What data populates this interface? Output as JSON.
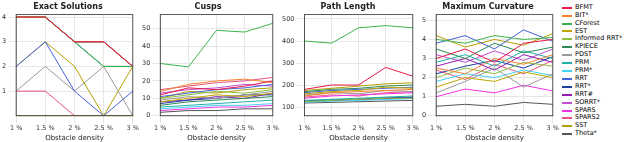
{
  "chart_data": [
    {
      "type": "line",
      "title": "Exact Solutions",
      "xlabel": "Obstacle density",
      "categories": [
        "1 %",
        "1.5 %",
        "2 %",
        "2.5 %",
        "3 %"
      ],
      "ylim": [
        0,
        4.1
      ],
      "yticks": [
        1,
        2,
        3,
        4
      ],
      "grid": true,
      "series": [
        {
          "name": "BFMT",
          "color": "#e6194b",
          "values": [
            4,
            4,
            3,
            3,
            2
          ]
        },
        {
          "name": "BIT*",
          "color": "#f58231",
          "values": [
            4,
            4,
            3,
            3,
            2
          ]
        },
        {
          "name": "CForest",
          "color": "#3cb44b",
          "values": [
            4,
            4,
            3,
            2,
            2
          ]
        },
        {
          "name": "EST",
          "color": "#bfa600",
          "values": [
            0,
            0,
            0,
            0,
            0
          ]
        },
        {
          "name": "Informed RRT*",
          "color": "#8fbf3f",
          "values": [
            4,
            4,
            3,
            3,
            2
          ]
        },
        {
          "name": "KPIECE",
          "color": "#2e8b57",
          "values": [
            0,
            0,
            0,
            0,
            0
          ]
        },
        {
          "name": "PDST",
          "color": "#999999",
          "values": [
            1,
            2,
            1,
            2,
            0
          ]
        },
        {
          "name": "PRM",
          "color": "#20b2aa",
          "values": [
            4,
            4,
            3,
            2,
            2
          ]
        },
        {
          "name": "PRM*",
          "color": "#42d4f4",
          "values": [
            4,
            4,
            3,
            3,
            2
          ]
        },
        {
          "name": "RRT",
          "color": "#4363d8",
          "values": [
            2,
            3,
            1,
            0,
            1
          ]
        },
        {
          "name": "RRT*",
          "color": "#1f3f9f",
          "values": [
            4,
            4,
            3,
            3,
            2
          ]
        },
        {
          "name": "RRT#",
          "color": "#911eb4",
          "values": [
            4,
            4,
            3,
            3,
            2
          ]
        },
        {
          "name": "SORRT*",
          "color": "#c04fd0",
          "values": [
            4,
            4,
            3,
            2,
            2
          ]
        },
        {
          "name": "SPARS",
          "color": "#f032e6",
          "values": [
            0,
            0,
            0,
            0,
            0
          ]
        },
        {
          "name": "SPARS2",
          "color": "#e75480",
          "values": [
            1,
            1,
            0,
            0,
            0
          ]
        },
        {
          "name": "SST",
          "color": "#b5a000",
          "values": [
            2,
            3,
            2,
            0,
            2
          ]
        },
        {
          "name": "Theta*",
          "color": "#555555",
          "values": [
            4,
            4,
            3,
            3,
            2
          ]
        }
      ]
    },
    {
      "type": "line",
      "title": "Cusps",
      "xlabel": "Obstacle density",
      "categories": [
        "1 %",
        "1.5 %",
        "2 %",
        "2.5 %",
        "3 %"
      ],
      "ylim": [
        0,
        58
      ],
      "yticks": [
        0,
        10,
        20,
        30,
        40,
        50
      ],
      "grid": true,
      "series": [
        {
          "name": "BFMT",
          "color": "#e6194b",
          "values": [
            12,
            16,
            15,
            17,
            20
          ]
        },
        {
          "name": "BIT*",
          "color": "#f58231",
          "values": [
            14,
            18,
            20,
            21,
            19
          ]
        },
        {
          "name": "CForest",
          "color": "#3cb44b",
          "values": [
            30,
            28,
            49,
            48,
            53
          ]
        },
        {
          "name": "EST",
          "color": "#bfa600",
          "values": [
            8,
            10,
            12,
            11,
            13
          ]
        },
        {
          "name": "Informed RRT*",
          "color": "#8fbf3f",
          "values": [
            10,
            12,
            14,
            13,
            15
          ]
        },
        {
          "name": "KPIECE",
          "color": "#2e8b57",
          "values": [
            6,
            8,
            9,
            10,
            11
          ]
        },
        {
          "name": "PDST",
          "color": "#999999",
          "values": [
            9,
            11,
            10,
            12,
            14
          ]
        },
        {
          "name": "PRM",
          "color": "#20b2aa",
          "values": [
            5,
            6,
            7,
            8,
            9
          ]
        },
        {
          "name": "PRM*",
          "color": "#42d4f4",
          "values": [
            4,
            5,
            6,
            6,
            7
          ]
        },
        {
          "name": "RRT",
          "color": "#4363d8",
          "values": [
            11,
            13,
            15,
            16,
            18
          ]
        },
        {
          "name": "RRT*",
          "color": "#1f3f9f",
          "values": [
            7,
            9,
            10,
            12,
            12
          ]
        },
        {
          "name": "RRT#",
          "color": "#911eb4",
          "values": [
            8,
            9,
            11,
            10,
            13
          ]
        },
        {
          "name": "SORRT*",
          "color": "#c04fd0",
          "values": [
            13,
            15,
            16,
            18,
            17
          ]
        },
        {
          "name": "SPARS",
          "color": "#f032e6",
          "values": [
            3,
            4,
            5,
            5,
            6
          ]
        },
        {
          "name": "SPARS2",
          "color": "#e75480",
          "values": [
            15,
            17,
            19,
            20,
            22
          ]
        },
        {
          "name": "SST",
          "color": "#b5a000",
          "values": [
            10,
            14,
            13,
            15,
            16
          ]
        },
        {
          "name": "Theta*",
          "color": "#555555",
          "values": [
            2,
            3,
            3,
            4,
            4
          ]
        }
      ]
    },
    {
      "type": "line",
      "title": "Path Length",
      "xlabel": "Obstacle density",
      "categories": [
        "1 %",
        "1.5 %",
        "2 %",
        "2.5 %",
        "3 %"
      ],
      "ylim": [
        60,
        520
      ],
      "yticks": [
        100,
        200,
        300,
        400,
        500
      ],
      "grid": true,
      "series": [
        {
          "name": "BFMT",
          "color": "#e6194b",
          "values": [
            180,
            200,
            200,
            280,
            240
          ]
        },
        {
          "name": "BIT*",
          "color": "#f58231",
          "values": [
            150,
            165,
            170,
            175,
            180
          ]
        },
        {
          "name": "CForest",
          "color": "#3cb44b",
          "values": [
            400,
            390,
            460,
            470,
            460
          ]
        },
        {
          "name": "EST",
          "color": "#bfa600",
          "values": [
            160,
            170,
            175,
            190,
            185
          ]
        },
        {
          "name": "Informed RRT*",
          "color": "#8fbf3f",
          "values": [
            125,
            130,
            135,
            140,
            140
          ]
        },
        {
          "name": "KPIECE",
          "color": "#2e8b57",
          "values": [
            170,
            180,
            185,
            195,
            200
          ]
        },
        {
          "name": "PDST",
          "color": "#999999",
          "values": [
            155,
            165,
            160,
            175,
            170
          ]
        },
        {
          "name": "PRM",
          "color": "#20b2aa",
          "values": [
            130,
            135,
            140,
            145,
            150
          ]
        },
        {
          "name": "PRM*",
          "color": "#42d4f4",
          "values": [
            122,
            126,
            130,
            134,
            138
          ]
        },
        {
          "name": "RRT",
          "color": "#4363d8",
          "values": [
            165,
            175,
            180,
            185,
            190
          ]
        },
        {
          "name": "RRT*",
          "color": "#1f3f9f",
          "values": [
            128,
            132,
            136,
            142,
            145
          ]
        },
        {
          "name": "RRT#",
          "color": "#911eb4",
          "values": [
            126,
            131,
            134,
            139,
            143
          ]
        },
        {
          "name": "SORRT*",
          "color": "#c04fd0",
          "values": [
            124,
            129,
            133,
            137,
            141
          ]
        },
        {
          "name": "SPARS",
          "color": "#f032e6",
          "values": [
            140,
            150,
            155,
            160,
            165
          ]
        },
        {
          "name": "SPARS2",
          "color": "#e75480",
          "values": [
            145,
            155,
            150,
            165,
            170
          ]
        },
        {
          "name": "SST",
          "color": "#b5a000",
          "values": [
            175,
            185,
            195,
            205,
            210
          ]
        },
        {
          "name": "Theta*",
          "color": "#555555",
          "values": [
            118,
            121,
            124,
            127,
            130
          ]
        }
      ]
    },
    {
      "type": "line",
      "title": "Maximum Curvature",
      "xlabel": "Obstacle density",
      "categories": [
        "1 %",
        "1.5 %",
        "2 %",
        "2.5 %",
        "3 %"
      ],
      "ylim": [
        0,
        5.3
      ],
      "yticks": [
        0,
        1,
        2,
        3,
        4,
        5
      ],
      "grid": true,
      "legend": "right",
      "series": [
        {
          "name": "BFMT",
          "color": "#e6194b",
          "values": [
            3.0,
            3.5,
            2.8,
            3.8,
            4.0
          ]
        },
        {
          "name": "BIT*",
          "color": "#f58231",
          "values": [
            2.5,
            2.2,
            3.0,
            2.7,
            3.2
          ]
        },
        {
          "name": "CForest",
          "color": "#3cb44b",
          "values": [
            4.0,
            3.8,
            4.2,
            4.0,
            4.1
          ]
        },
        {
          "name": "EST",
          "color": "#bfa600",
          "values": [
            1.5,
            2.0,
            1.8,
            2.3,
            2.0
          ]
        },
        {
          "name": "Informed RRT*",
          "color": "#8fbf3f",
          "values": [
            2.0,
            2.5,
            2.2,
            2.8,
            2.6
          ]
        },
        {
          "name": "KPIECE",
          "color": "#2e8b57",
          "values": [
            3.5,
            3.0,
            3.8,
            3.3,
            3.6
          ]
        },
        {
          "name": "PDST",
          "color": "#999999",
          "values": [
            1.2,
            1.8,
            2.5,
            1.5,
            2.2
          ]
        },
        {
          "name": "PRM",
          "color": "#20b2aa",
          "values": [
            2.8,
            3.2,
            2.6,
            3.4,
            3.0
          ]
        },
        {
          "name": "PRM*",
          "color": "#42d4f4",
          "values": [
            1.8,
            2.2,
            2.0,
            2.4,
            2.1
          ]
        },
        {
          "name": "RRT",
          "color": "#4363d8",
          "values": [
            3.8,
            4.2,
            3.5,
            4.5,
            3.9
          ]
        },
        {
          "name": "RRT*",
          "color": "#1f3f9f",
          "values": [
            2.2,
            2.6,
            2.9,
            2.5,
            3.1
          ]
        },
        {
          "name": "RRT#",
          "color": "#911eb4",
          "values": [
            2.6,
            3.0,
            2.4,
            3.2,
            2.8
          ]
        },
        {
          "name": "SORRT*",
          "color": "#c04fd0",
          "values": [
            3.2,
            2.8,
            3.4,
            2.9,
            3.5
          ]
        },
        {
          "name": "SPARS",
          "color": "#f032e6",
          "values": [
            1.0,
            1.4,
            1.2,
            1.6,
            1.3
          ]
        },
        {
          "name": "SPARS2",
          "color": "#e75480",
          "values": [
            2.4,
            1.9,
            2.7,
            2.2,
            2.9
          ]
        },
        {
          "name": "SST",
          "color": "#b5a000",
          "values": [
            4.2,
            3.6,
            4.0,
            3.7,
            4.3
          ]
        },
        {
          "name": "Theta*",
          "color": "#555555",
          "values": [
            0.5,
            0.6,
            0.5,
            0.7,
            0.6
          ]
        }
      ]
    }
  ]
}
